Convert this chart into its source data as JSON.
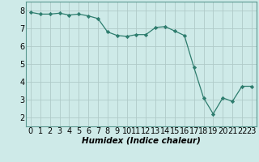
{
  "x": [
    0,
    1,
    2,
    3,
    4,
    5,
    6,
    7,
    8,
    9,
    10,
    11,
    12,
    13,
    14,
    15,
    16,
    17,
    18,
    19,
    20,
    21,
    22,
    23
  ],
  "y": [
    7.9,
    7.8,
    7.8,
    7.85,
    7.75,
    7.8,
    7.7,
    7.55,
    6.8,
    6.6,
    6.55,
    6.65,
    6.65,
    7.05,
    7.1,
    6.85,
    6.6,
    4.8,
    3.1,
    2.2,
    3.1,
    2.9,
    3.75,
    3.75
  ],
  "line_color": "#2e7d6e",
  "marker": "D",
  "marker_size": 2.2,
  "bg_color": "#ceeae8",
  "grid_color": "#b0cac8",
  "xlabel": "Humidex (Indice chaleur)",
  "xlabel_fontsize": 7.5,
  "tick_fontsize": 7,
  "ylim": [
    1.5,
    8.5
  ],
  "xlim": [
    -0.5,
    23.5
  ],
  "yticks": [
    2,
    3,
    4,
    5,
    6,
    7,
    8
  ],
  "xticks": [
    0,
    1,
    2,
    3,
    4,
    5,
    6,
    7,
    8,
    9,
    10,
    11,
    12,
    13,
    14,
    15,
    16,
    17,
    18,
    19,
    20,
    21,
    22,
    23
  ]
}
